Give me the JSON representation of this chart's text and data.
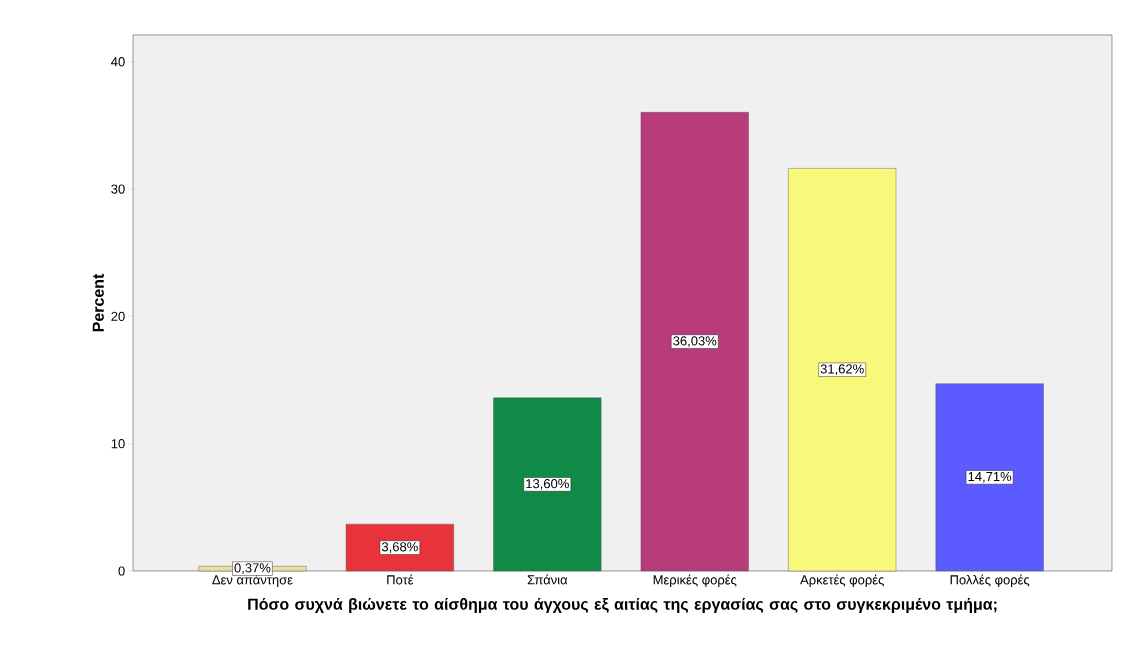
{
  "chart_data": {
    "type": "bar",
    "xlabel": "Πόσο συχνά βιώνετε το αίσθημα του άγχους εξ αιτίας της εργασίας σας στο συγκεκριμένο τμήμα;",
    "ylabel": "Percent",
    "categories": [
      "Δεν απάντησε",
      "Ποτέ",
      "Σπάνια",
      "Μερικές φορές",
      "Αρκετές φορές",
      "Πολλές φορές"
    ],
    "values": [
      0.37,
      3.68,
      13.6,
      36.03,
      31.62,
      14.71
    ],
    "value_labels": [
      "0,37%",
      "3,68%",
      "13,60%",
      "36,03%",
      "31,62%",
      "14,71%"
    ],
    "colors": [
      "#e8dfa0",
      "#e8333a",
      "#0f8a47",
      "#b83c7a",
      "#f8f87a",
      "#5b5bff"
    ],
    "ylim": [
      0,
      42.1
    ],
    "yticks": [
      0,
      10,
      20,
      30,
      40
    ]
  }
}
